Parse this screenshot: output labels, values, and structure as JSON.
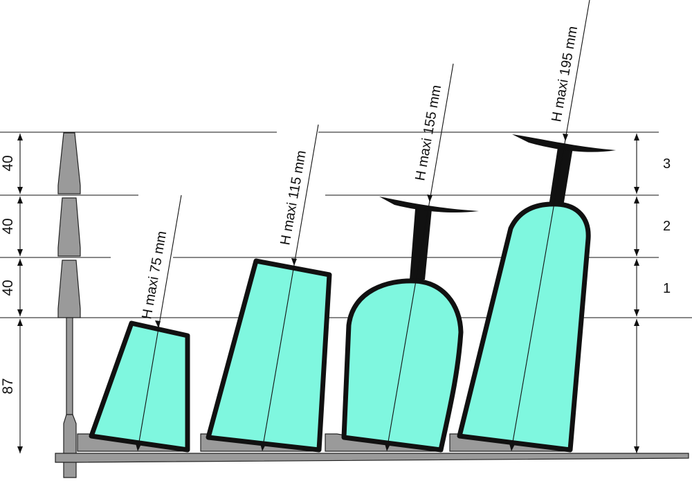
{
  "dimensions_left": {
    "top": "40",
    "middle": "40",
    "lower": "40",
    "base": "87"
  },
  "level_numbers": {
    "level1": "1",
    "level2": "2",
    "level3": "3"
  },
  "height_labels": {
    "glass1": "H maxi 75 mm",
    "glass2": "H maxi 115 mm",
    "glass3": "H maxi 155 mm",
    "glass4": "H maxi 195 mm"
  },
  "colors": {
    "glass_fill": "#7ff7df",
    "outline": "#111111",
    "metal": "#9a9a9a"
  }
}
